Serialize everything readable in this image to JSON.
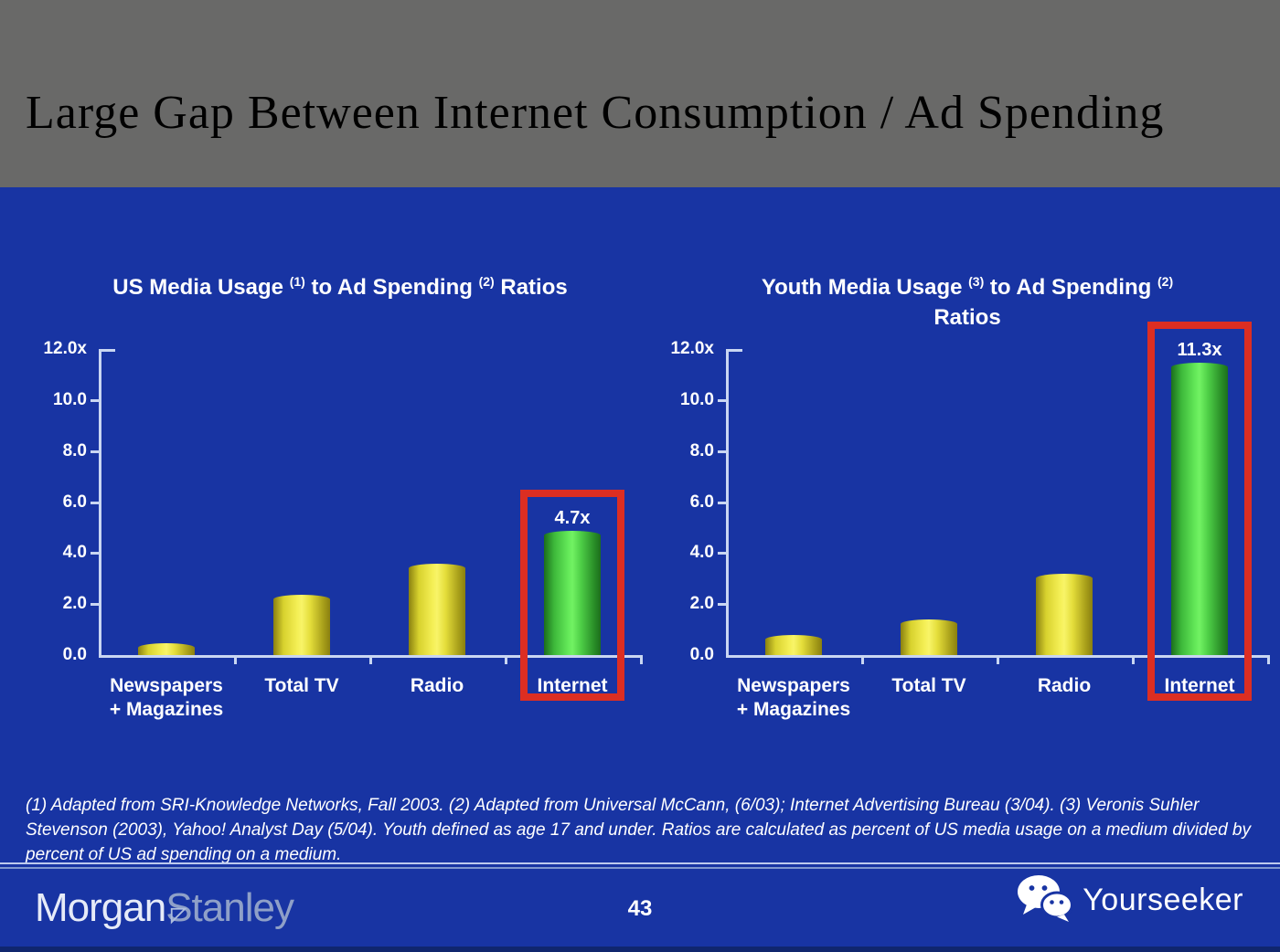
{
  "header": {
    "title": "Large Gap Between Internet Consumption / Ad Spending"
  },
  "footnote": "(1) Adapted from SRI-Knowledge Networks, Fall 2003.  (2) Adapted from Universal McCann, (6/03); Internet Advertising Bureau (3/04). (3) Veronis Suhler Stevenson (2003), Yahoo! Analyst Day (5/04).  Youth defined as age 17 and under.  Ratios are calculated as percent of US media usage on a medium divided by percent of US ad spending on a medium.",
  "footer": {
    "brand_word1": "Morgan",
    "brand_word2": "Stanley",
    "page_number": "43",
    "watermark": "Yourseeker"
  },
  "colors": {
    "background": "#1834a3",
    "header_bg": "#696968",
    "bar_yellow": "#e8e23a",
    "bar_green": "#4fd94a",
    "highlight_red": "#dc2e22",
    "axis": "#c9d6f2",
    "text": "#ffffff"
  },
  "chart_data": [
    {
      "type": "bar",
      "title": "US Media Usage (1) to Ad Spending (2) Ratios",
      "title_lines": [
        [
          {
            "text": "US Media Usage "
          },
          {
            "text": "(1)",
            "sup": true
          },
          {
            "text": " to Ad Spending "
          },
          {
            "text": "(2)",
            "sup": true
          },
          {
            "text": " Ratios"
          }
        ]
      ],
      "categories": [
        [
          "Newspapers",
          "+ Magazines"
        ],
        [
          "Total TV"
        ],
        [
          "Radio"
        ],
        [
          "Internet"
        ]
      ],
      "values": [
        0.3,
        2.2,
        3.4,
        4.7
      ],
      "bar_colors": [
        "yellow",
        "yellow",
        "yellow",
        "green"
      ],
      "highlight_index": 3,
      "highlight_value_label": "4.7x",
      "yticks": [
        {
          "label": "12.0x",
          "value": 12
        },
        {
          "label": "10.0",
          "value": 10
        },
        {
          "label": "8.0",
          "value": 8
        },
        {
          "label": "6.0",
          "value": 6
        },
        {
          "label": "4.0",
          "value": 4
        },
        {
          "label": "2.0",
          "value": 2
        },
        {
          "label": "0.0",
          "value": 0
        }
      ],
      "ylim": [
        0,
        12
      ],
      "grid": false,
      "legend": false
    },
    {
      "type": "bar",
      "title": "Youth Media Usage (3) to Ad Spending (2) Ratios",
      "title_lines": [
        [
          {
            "text": "Youth Media Usage "
          },
          {
            "text": "(3)",
            "sup": true
          },
          {
            "text": " to Ad Spending "
          },
          {
            "text": "(2)",
            "sup": true
          }
        ],
        [
          {
            "text": "Ratios"
          }
        ]
      ],
      "categories": [
        [
          "Newspapers",
          "+ Magazines"
        ],
        [
          "Total TV"
        ],
        [
          "Radio"
        ],
        [
          "Internet"
        ]
      ],
      "values": [
        0.6,
        1.2,
        3.0,
        11.3
      ],
      "bar_colors": [
        "yellow",
        "yellow",
        "yellow",
        "green"
      ],
      "highlight_index": 3,
      "highlight_value_label": "11.3x",
      "yticks": [
        {
          "label": "12.0x",
          "value": 12
        },
        {
          "label": "10.0",
          "value": 10
        },
        {
          "label": "8.0",
          "value": 8
        },
        {
          "label": "6.0",
          "value": 6
        },
        {
          "label": "4.0",
          "value": 4
        },
        {
          "label": "2.0",
          "value": 2
        },
        {
          "label": "0.0",
          "value": 0
        }
      ],
      "ylim": [
        0,
        12
      ],
      "grid": false,
      "legend": false
    }
  ]
}
